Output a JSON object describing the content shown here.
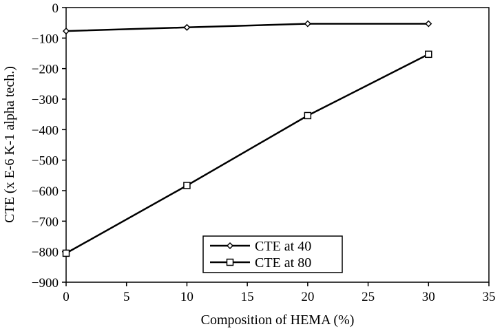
{
  "chart_data": {
    "type": "line",
    "xlabel": "Composition of HEMA (%)",
    "ylabel": "CTE (x E-6 K-1 alpha tech.)",
    "xlim": [
      0,
      35
    ],
    "ylim": [
      -900,
      0
    ],
    "xticks": [
      "0",
      "5",
      "10",
      "15",
      "20",
      "25",
      "30",
      "35"
    ],
    "yticks": [
      "0",
      "−100",
      "−200",
      "−300",
      "−400",
      "−500",
      "−600",
      "−700",
      "−800",
      "−900"
    ],
    "grid": false,
    "legend_position": "bottom-center",
    "series": [
      {
        "name": "CTE at 40",
        "marker": "diamond",
        "color": "#000000",
        "x": [
          0,
          10,
          20,
          30
        ],
        "y": [
          -77,
          -65,
          -53,
          -53
        ]
      },
      {
        "name": "CTE at 80",
        "marker": "square",
        "color": "#000000",
        "x": [
          0,
          10,
          20,
          30
        ],
        "y": [
          -805,
          -583,
          -354,
          -153
        ]
      }
    ]
  }
}
